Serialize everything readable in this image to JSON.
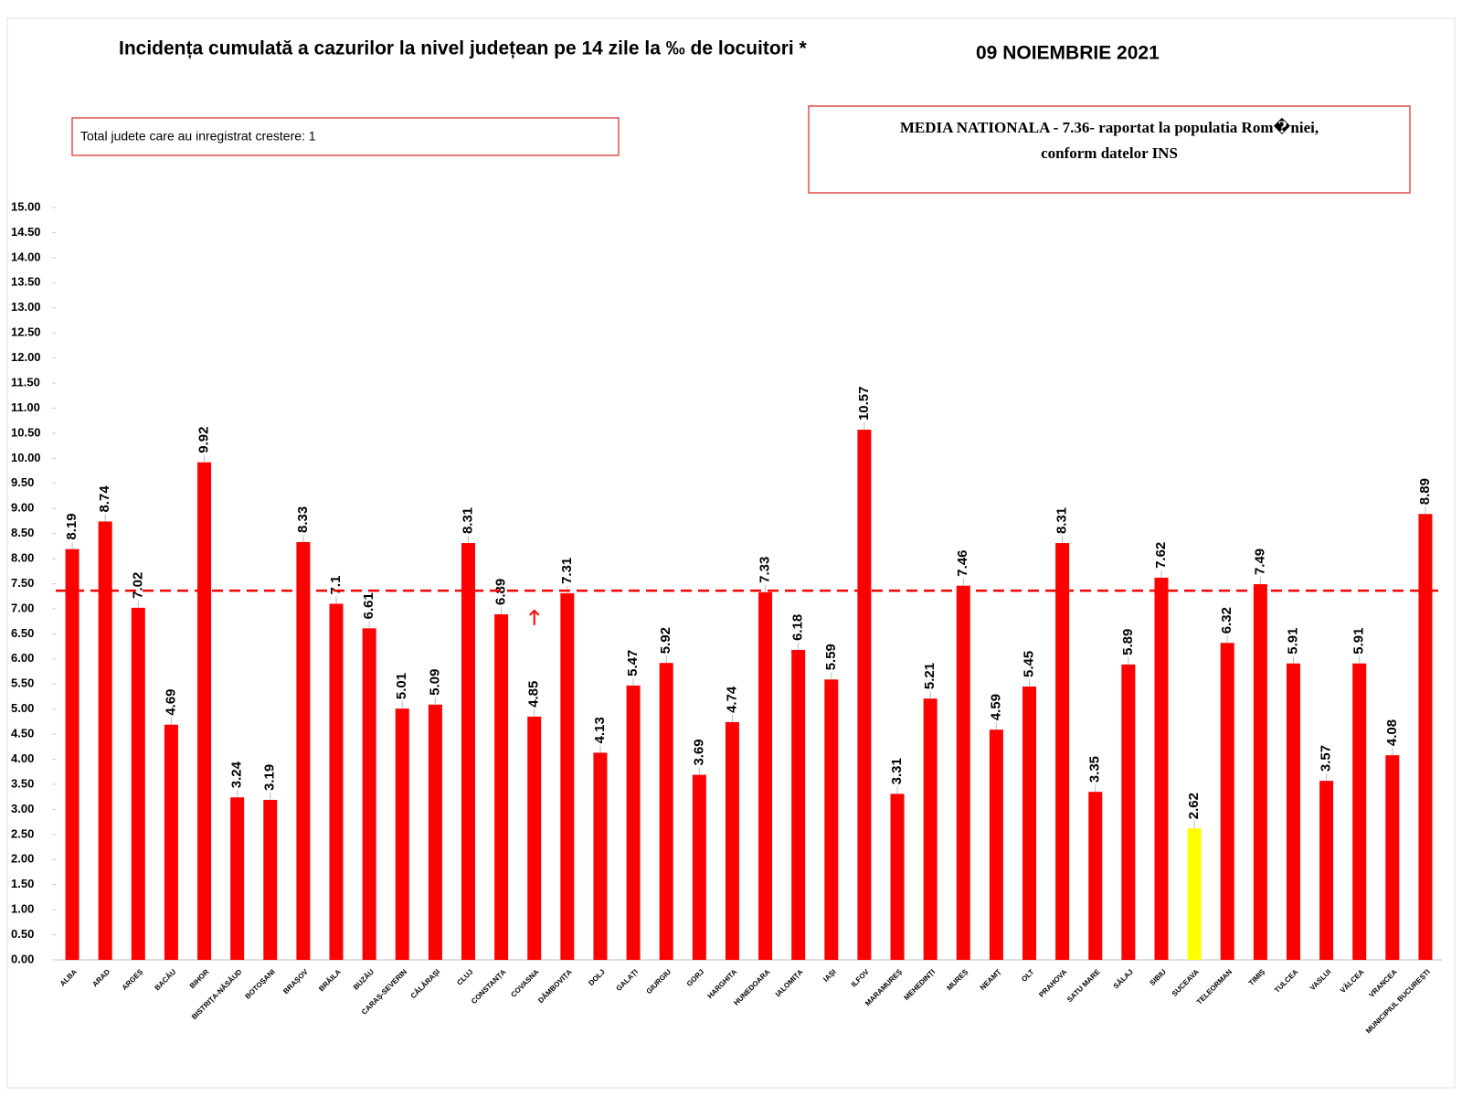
{
  "chart_data": {
    "type": "bar",
    "title": "Incidența cumulată a cazurilor la nivel județean pe 14 zile la ‰ de locuitori *",
    "subtitle": "09 NOIEMBRIE 2021",
    "annotations": [
      "Total judete care au inregistrat crestere: 1",
      "MEDIA NATIONALA - 7.36-  raportat la populatia Rom�niei,",
      "conform datelor INS"
    ],
    "categories": [
      "ALBA",
      "ARAD",
      "ARGEȘ",
      "BACĂU",
      "BIHOR",
      "BISTRIȚA-NĂSĂUD",
      "BOTOȘANI",
      "BRAȘOV",
      "BRĂILA",
      "BUZĂU",
      "CARAȘ-SEVERIN",
      "CĂLĂRAȘI",
      "CLUJ",
      "CONSTANȚA",
      "COVASNA",
      "DÂMBOVIȚA",
      "DOLJ",
      "GALAȚI",
      "GIURGIU",
      "GORJ",
      "HARGHITA",
      "HUNEDOARA",
      "IALOMIȚA",
      "IAȘI",
      "ILFOV",
      "MARAMUREȘ",
      "MEHEDINȚI",
      "MUREȘ",
      "NEAMȚ",
      "OLT",
      "PRAHOVA",
      "SATU MARE",
      "SĂLAJ",
      "SIBIU",
      "SUCEAVA",
      "TELEORMAN",
      "TIMIȘ",
      "TULCEA",
      "VASLUI",
      "VÂLCEA",
      "VRANCEA",
      "MUNICIPIUL BUCUREȘTI"
    ],
    "values": [
      8.19,
      8.74,
      7.02,
      4.69,
      9.92,
      3.24,
      3.19,
      8.33,
      7.1,
      6.61,
      5.01,
      5.09,
      8.31,
      6.89,
      4.85,
      7.31,
      4.13,
      5.47,
      5.92,
      3.69,
      4.74,
      7.33,
      6.18,
      5.59,
      10.57,
      3.31,
      5.21,
      7.46,
      4.59,
      5.45,
      8.31,
      3.35,
      5.89,
      7.62,
      2.62,
      6.32,
      7.49,
      5.91,
      3.57,
      5.91,
      4.08,
      8.89
    ],
    "colors": [
      "#ff0000",
      "#ff0000",
      "#ff0000",
      "#ff0000",
      "#ff0000",
      "#ff0000",
      "#ff0000",
      "#ff0000",
      "#ff0000",
      "#ff0000",
      "#ff0000",
      "#ff0000",
      "#ff0000",
      "#ff0000",
      "#ff0000",
      "#ff0000",
      "#ff0000",
      "#ff0000",
      "#ff0000",
      "#ff0000",
      "#ff0000",
      "#ff0000",
      "#ff0000",
      "#ff0000",
      "#ff0000",
      "#ff0000",
      "#ff0000",
      "#ff0000",
      "#ff0000",
      "#ff0000",
      "#ff0000",
      "#ff0000",
      "#ff0000",
      "#ff0000",
      "#ffff00",
      "#ff0000",
      "#ff0000",
      "#ff0000",
      "#ff0000",
      "#ff0000",
      "#ff0000",
      "#ff0000"
    ],
    "value_label_colors": [
      "#000000",
      "#000000",
      "#000000",
      "#000000",
      "#000000",
      "#000000",
      "#000000",
      "#000000",
      "#000000",
      "#000000",
      "#000000",
      "#000000",
      "#000000",
      "#000000",
      "#ff0000",
      "#000000",
      "#000000",
      "#000000",
      "#000000",
      "#000000",
      "#000000",
      "#000000",
      "#000000",
      "#000000",
      "#000000",
      "#000000",
      "#000000",
      "#000000",
      "#000000",
      "#000000",
      "#000000",
      "#000000",
      "#000000",
      "#000000",
      "#000000",
      "#000000",
      "#000000",
      "#000000",
      "#000000",
      "#000000",
      "#000000",
      "#000000"
    ],
    "reference_line": {
      "value": 7.36,
      "color": "#ff0000"
    },
    "ylim": [
      0,
      15
    ],
    "yticks": [
      {
        "value": 0,
        "label": "0.00"
      },
      {
        "value": 0.5,
        "label": "0.50"
      },
      {
        "value": 1,
        "label": "1.00"
      },
      {
        "value": 1.5,
        "label": "1.50"
      },
      {
        "value": 2,
        "label": "2.00"
      },
      {
        "value": 2.5,
        "label": "2.50"
      },
      {
        "value": 3,
        "label": "3.00"
      },
      {
        "value": 3.5,
        "label": "3.50"
      },
      {
        "value": 4,
        "label": "4.00"
      },
      {
        "value": 4.5,
        "label": "4.50"
      },
      {
        "value": 5,
        "label": "5.00"
      },
      {
        "value": 5.5,
        "label": "5.50"
      },
      {
        "value": 6,
        "label": "6.00"
      },
      {
        "value": 6.5,
        "label": "6.50"
      },
      {
        "value": 7,
        "label": "7.00"
      },
      {
        "value": 7.5,
        "label": "7.50"
      },
      {
        "value": 8,
        "label": "8.00"
      },
      {
        "value": 8.5,
        "label": "8.50"
      },
      {
        "value": 9,
        "label": "9.00"
      },
      {
        "value": 9.5,
        "label": "9.50"
      },
      {
        "value": 10,
        "label": "10.00"
      },
      {
        "value": 10.5,
        "label": "10.50"
      },
      {
        "value": 11,
        "label": "11.00"
      },
      {
        "value": 11.5,
        "label": "11.50"
      },
      {
        "value": 12,
        "label": "12.00"
      },
      {
        "value": 12.5,
        "label": "12.50"
      },
      {
        "value": 13,
        "label": "13.00"
      },
      {
        "value": 13.5,
        "label": "13.50"
      },
      {
        "value": 14,
        "label": "14.00"
      },
      {
        "value": 14.5,
        "label": "14.50"
      },
      {
        "value": 15,
        "label": "15.00"
      }
    ],
    "grid": false
  }
}
